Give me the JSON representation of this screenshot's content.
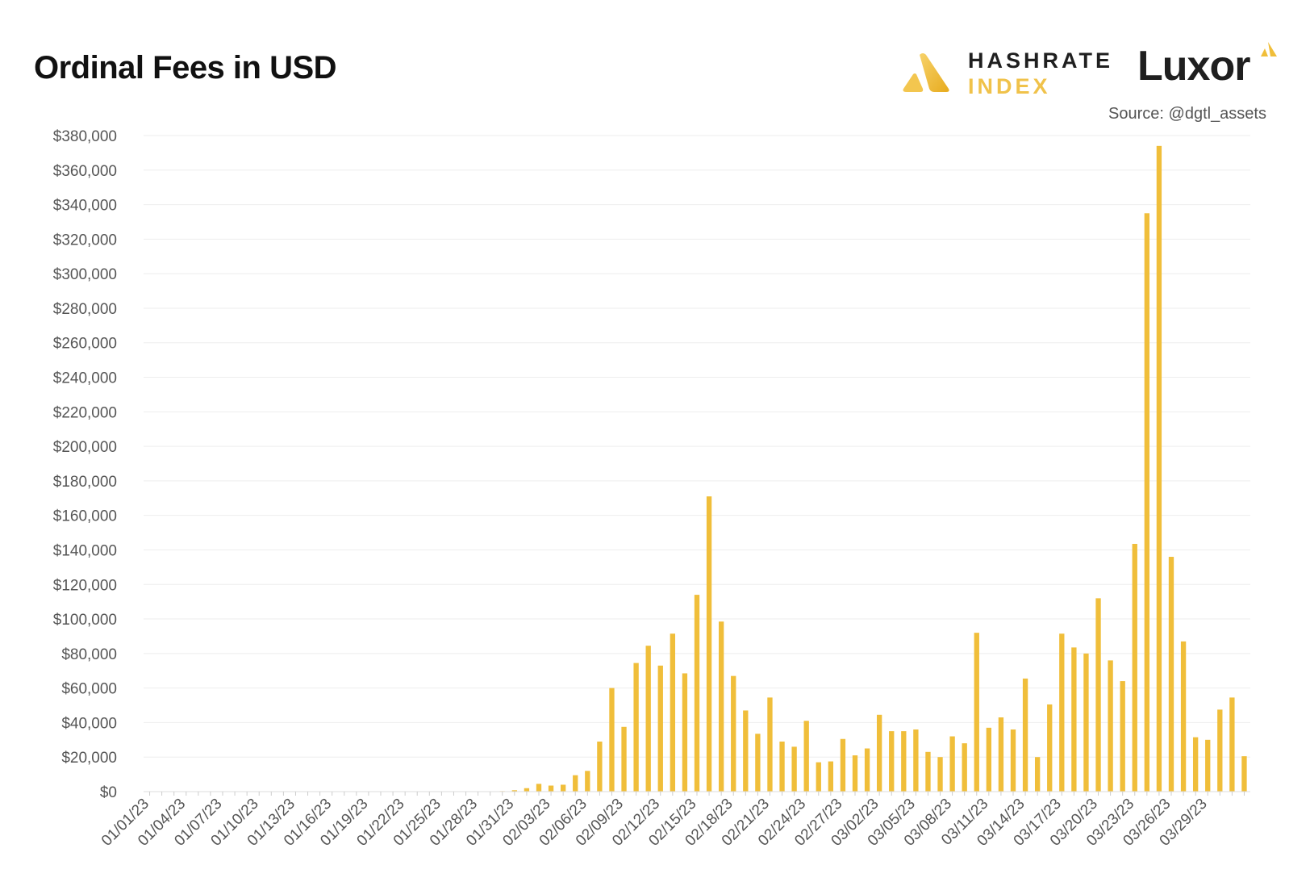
{
  "header": {
    "title": "Ordinal Fees in USD",
    "brand1_line1": "HASHRATE",
    "brand1_line2": "INDEX",
    "brand2": "Luxor",
    "source": "Source: @dgtl_assets"
  },
  "colors": {
    "bar": "#f0be3a",
    "grid": "#eeeeee",
    "axis_text": "#555555",
    "brand_accent": "#f0c24a"
  },
  "chart_data": {
    "type": "bar",
    "title": "Ordinal Fees in USD",
    "xlabel": "",
    "ylabel": "",
    "ylim": [
      0,
      380000
    ],
    "y_ticks": [
      0,
      20000,
      40000,
      60000,
      80000,
      100000,
      120000,
      140000,
      160000,
      180000,
      200000,
      220000,
      240000,
      260000,
      280000,
      300000,
      320000,
      340000,
      360000,
      380000
    ],
    "y_tick_labels": [
      "$0",
      "$20,000",
      "$40,000",
      "$60,000",
      "$80,000",
      "$100,000",
      "$120,000",
      "$140,000",
      "$160,000",
      "$180,000",
      "$200,000",
      "$220,000",
      "$240,000",
      "$260,000",
      "$280,000",
      "$300,000",
      "$320,000",
      "$340,000",
      "$360,000",
      "$380,000"
    ],
    "x_tick_labels": [
      "01/01/23",
      "01/04/23",
      "01/07/23",
      "01/10/23",
      "01/13/23",
      "01/16/23",
      "01/19/23",
      "01/22/23",
      "01/25/23",
      "01/28/23",
      "01/31/23",
      "02/03/23",
      "02/06/23",
      "02/09/23",
      "02/12/23",
      "02/15/23",
      "02/18/23",
      "02/21/23",
      "02/24/23",
      "02/27/23",
      "03/02/23",
      "03/05/23",
      "03/08/23",
      "03/11/23",
      "03/14/23",
      "03/17/23",
      "03/20/23",
      "03/23/23",
      "03/26/23",
      "03/29/23"
    ],
    "grid": true,
    "legend": "none",
    "series": [
      {
        "name": "Ordinal Fees (USD)",
        "values": [
          0,
          0,
          0,
          0,
          0,
          0,
          0,
          0,
          0,
          0,
          0,
          0,
          0,
          0,
          0,
          0,
          0,
          0,
          0,
          0,
          0,
          0,
          0,
          0,
          0,
          0,
          0,
          0,
          200,
          300,
          800,
          2000,
          4500,
          3500,
          4000,
          9500,
          12000,
          29000,
          60000,
          37500,
          74500,
          84500,
          73000,
          91500,
          68500,
          114000,
          171000,
          98500,
          67000,
          47000,
          33500,
          54500,
          29000,
          26000,
          41000,
          17000,
          17500,
          30500,
          21000,
          25000,
          44500,
          35000,
          35000,
          36000,
          23000,
          20000,
          32000,
          28000,
          92000,
          37000,
          43000,
          36000,
          65500,
          20000,
          50500,
          91500,
          83500,
          80000,
          112000,
          76000,
          64000,
          143500,
          335000,
          374000,
          136000,
          87000,
          31500,
          30000,
          47500,
          54500,
          20500
        ]
      }
    ]
  }
}
